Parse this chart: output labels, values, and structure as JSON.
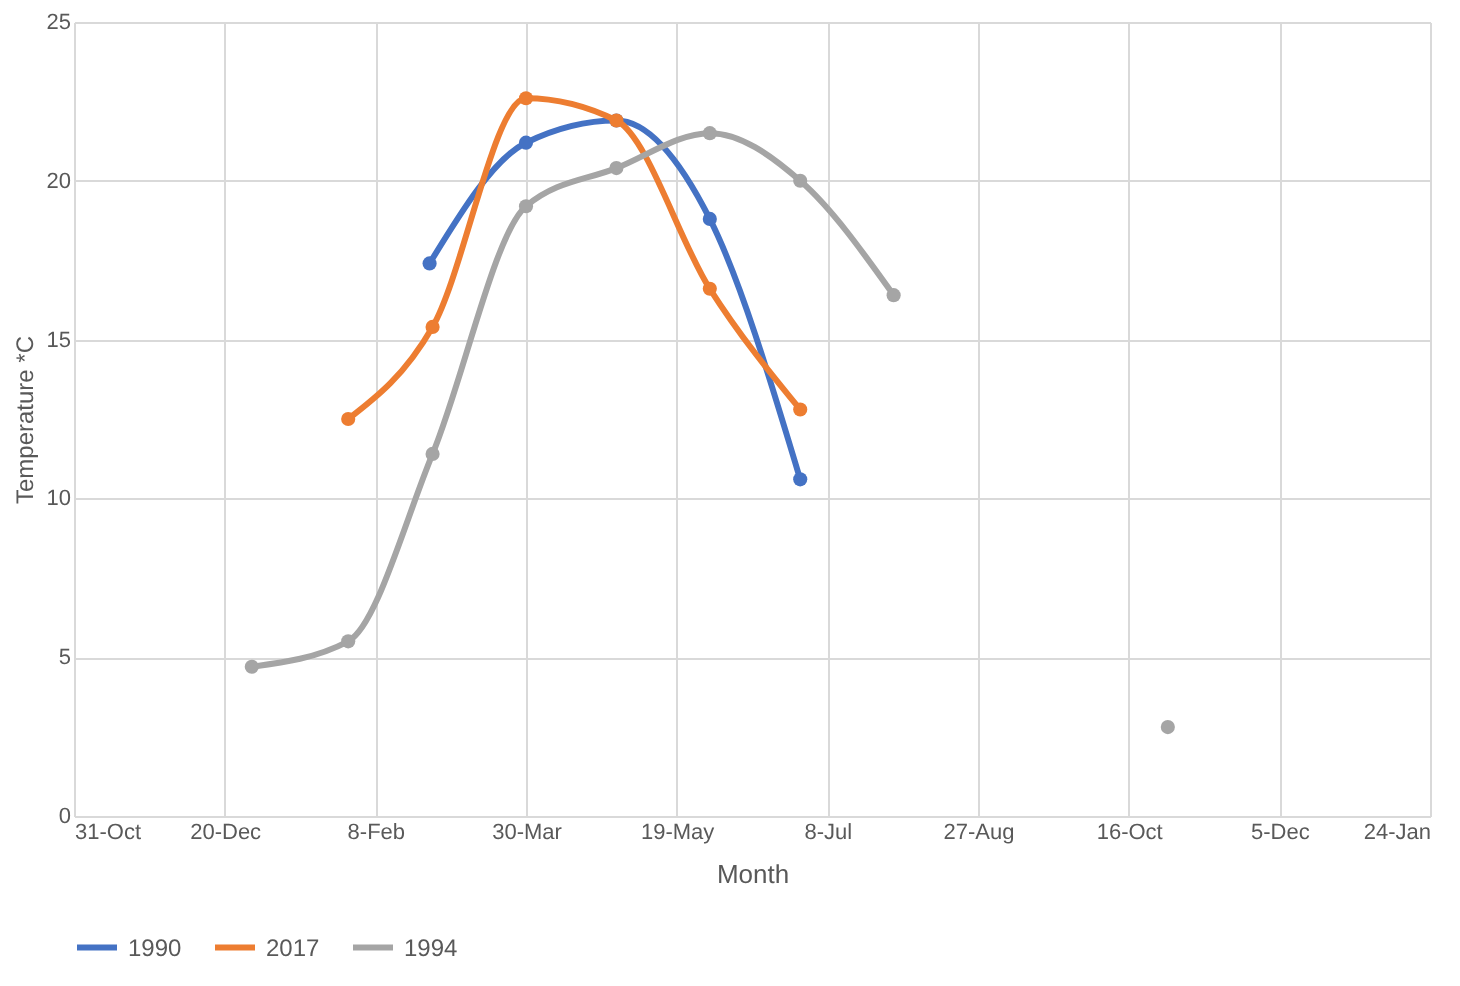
{
  "chart_data": {
    "type": "line",
    "xlabel": "Month",
    "ylabel": "Temperature *C",
    "xlim": [
      "2016-10-31",
      "2018-01-24"
    ],
    "xticks": [
      {
        "value": "2016-10-31",
        "label": "31-Oct"
      },
      {
        "value": "2016-12-20",
        "label": "20-Dec"
      },
      {
        "value": "2017-02-08",
        "label": "8-Feb"
      },
      {
        "value": "2017-03-30",
        "label": "30-Mar"
      },
      {
        "value": "2017-05-19",
        "label": "19-May"
      },
      {
        "value": "2017-07-08",
        "label": "8-Jul"
      },
      {
        "value": "2017-08-27",
        "label": "27-Aug"
      },
      {
        "value": "2017-10-16",
        "label": "16-Oct"
      },
      {
        "value": "2017-12-05",
        "label": "5-Dec"
      },
      {
        "value": "2018-01-24",
        "label": "24-Jan"
      }
    ],
    "ylim": [
      0,
      25
    ],
    "yticks": [
      0,
      5,
      10,
      15,
      20,
      25
    ],
    "grid": true,
    "legend": "bottom",
    "marker": "circle",
    "line_style": "solid",
    "series": [
      {
        "name": "1990",
        "color": "#4472c4",
        "x": [
          "2017-02-26",
          "2017-03-30",
          "2017-04-29",
          "2017-05-30",
          "2017-06-29"
        ],
        "values": [
          17.4,
          21.2,
          21.9,
          18.8,
          10.6
        ]
      },
      {
        "name": "2017",
        "color": "#ed7d31",
        "x": [
          "2017-01-30",
          "2017-02-27",
          "2017-03-30",
          "2017-04-29",
          "2017-05-30",
          "2017-06-29"
        ],
        "values": [
          12.5,
          15.4,
          22.6,
          21.9,
          16.6,
          12.8
        ]
      },
      {
        "name": "1994",
        "color": "#a5a5a5",
        "x": [
          "2016-12-29",
          "2017-01-30",
          "2017-02-27",
          "2017-03-30",
          "2017-04-29",
          "2017-05-30",
          "2017-06-29",
          "2017-07-30"
        ],
        "values": [
          4.7,
          5.5,
          11.4,
          19.2,
          20.4,
          21.5,
          20.0,
          16.4
        ]
      },
      {
        "type": "scatter",
        "color": "#a5a5a5",
        "x": [
          "2017-10-29"
        ],
        "values": [
          2.8
        ]
      }
    ]
  }
}
